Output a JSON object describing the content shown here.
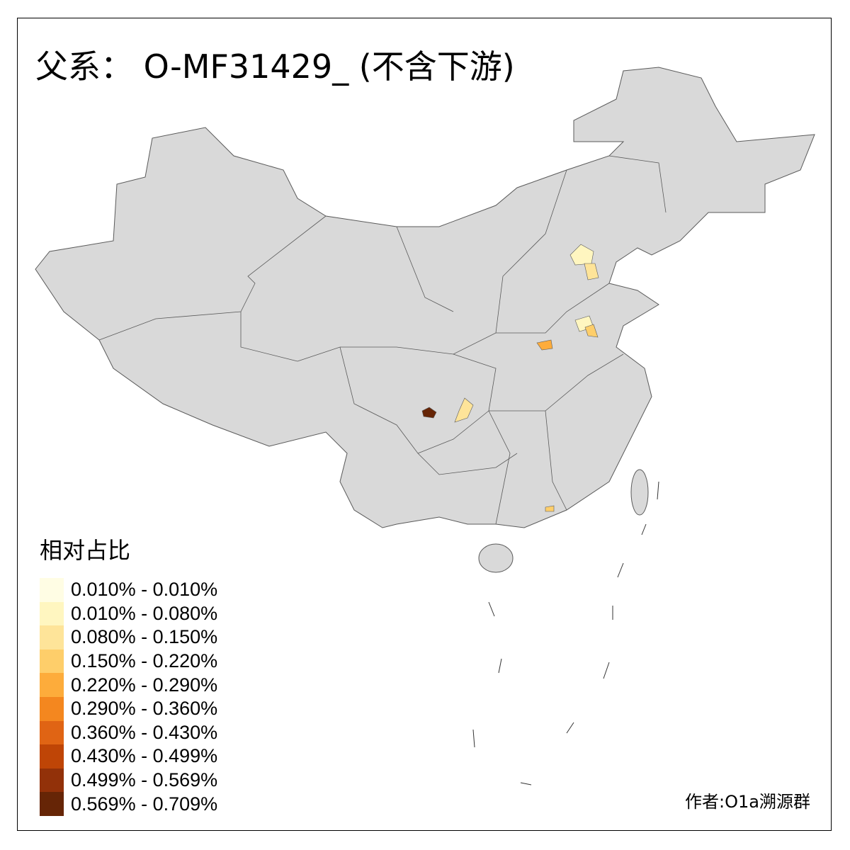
{
  "title": "父系： O-MF31429_ (不含下游)",
  "legend": {
    "title": "相对占比",
    "items": [
      {
        "label": "0.010% - 0.010%",
        "color": "#FFFDE4"
      },
      {
        "label": "0.010% - 0.080%",
        "color": "#FFF6C0"
      },
      {
        "label": "0.080% - 0.150%",
        "color": "#FEE499"
      },
      {
        "label": "0.150% - 0.220%",
        "color": "#FECE6A"
      },
      {
        "label": "0.220% - 0.290%",
        "color": "#FDAC3B"
      },
      {
        "label": "0.290% - 0.360%",
        "color": "#F4871F"
      },
      {
        "label": "0.360% - 0.430%",
        "color": "#E06414"
      },
      {
        "label": "0.430% - 0.499%",
        "color": "#BF4506"
      },
      {
        "label": "0.499% - 0.569%",
        "color": "#923109"
      },
      {
        "label": "0.569% - 0.709%",
        "color": "#662506"
      }
    ]
  },
  "credit": "作者:O1a溯源群",
  "colors": {
    "base_region": "#D9D9D9",
    "border": "#5a5a5a"
  }
}
